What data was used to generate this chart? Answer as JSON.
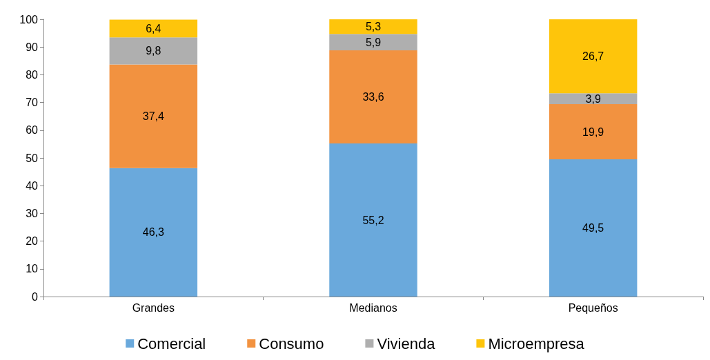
{
  "chart_data": {
    "type": "bar",
    "stacked": true,
    "categories": [
      "Grandes",
      "Medianos",
      "Pequeños"
    ],
    "series": [
      {
        "name": "Comercial",
        "color": "#6aa9dc",
        "values": [
          46.3,
          55.2,
          49.5
        ],
        "value_labels": [
          "46,3",
          "55,2",
          "49,5"
        ]
      },
      {
        "name": "Consumo",
        "color": "#f29240",
        "values": [
          37.4,
          33.6,
          19.9
        ],
        "value_labels": [
          "37,4",
          "33,6",
          "19,9"
        ]
      },
      {
        "name": "Vivienda",
        "color": "#afafaf",
        "values": [
          9.8,
          5.9,
          3.9
        ],
        "value_labels": [
          "9,8",
          "5,9",
          "3,9"
        ]
      },
      {
        "name": "Microempresa",
        "color": "#fec50b",
        "values": [
          6.4,
          5.3,
          26.7
        ],
        "value_labels": [
          "6,4",
          "5,3",
          "26,7"
        ]
      }
    ],
    "ylim": [
      0,
      100
    ],
    "yticks": [
      0,
      10,
      20,
      30,
      40,
      50,
      60,
      70,
      80,
      90,
      100
    ],
    "grid": false,
    "legend": "bottom"
  }
}
